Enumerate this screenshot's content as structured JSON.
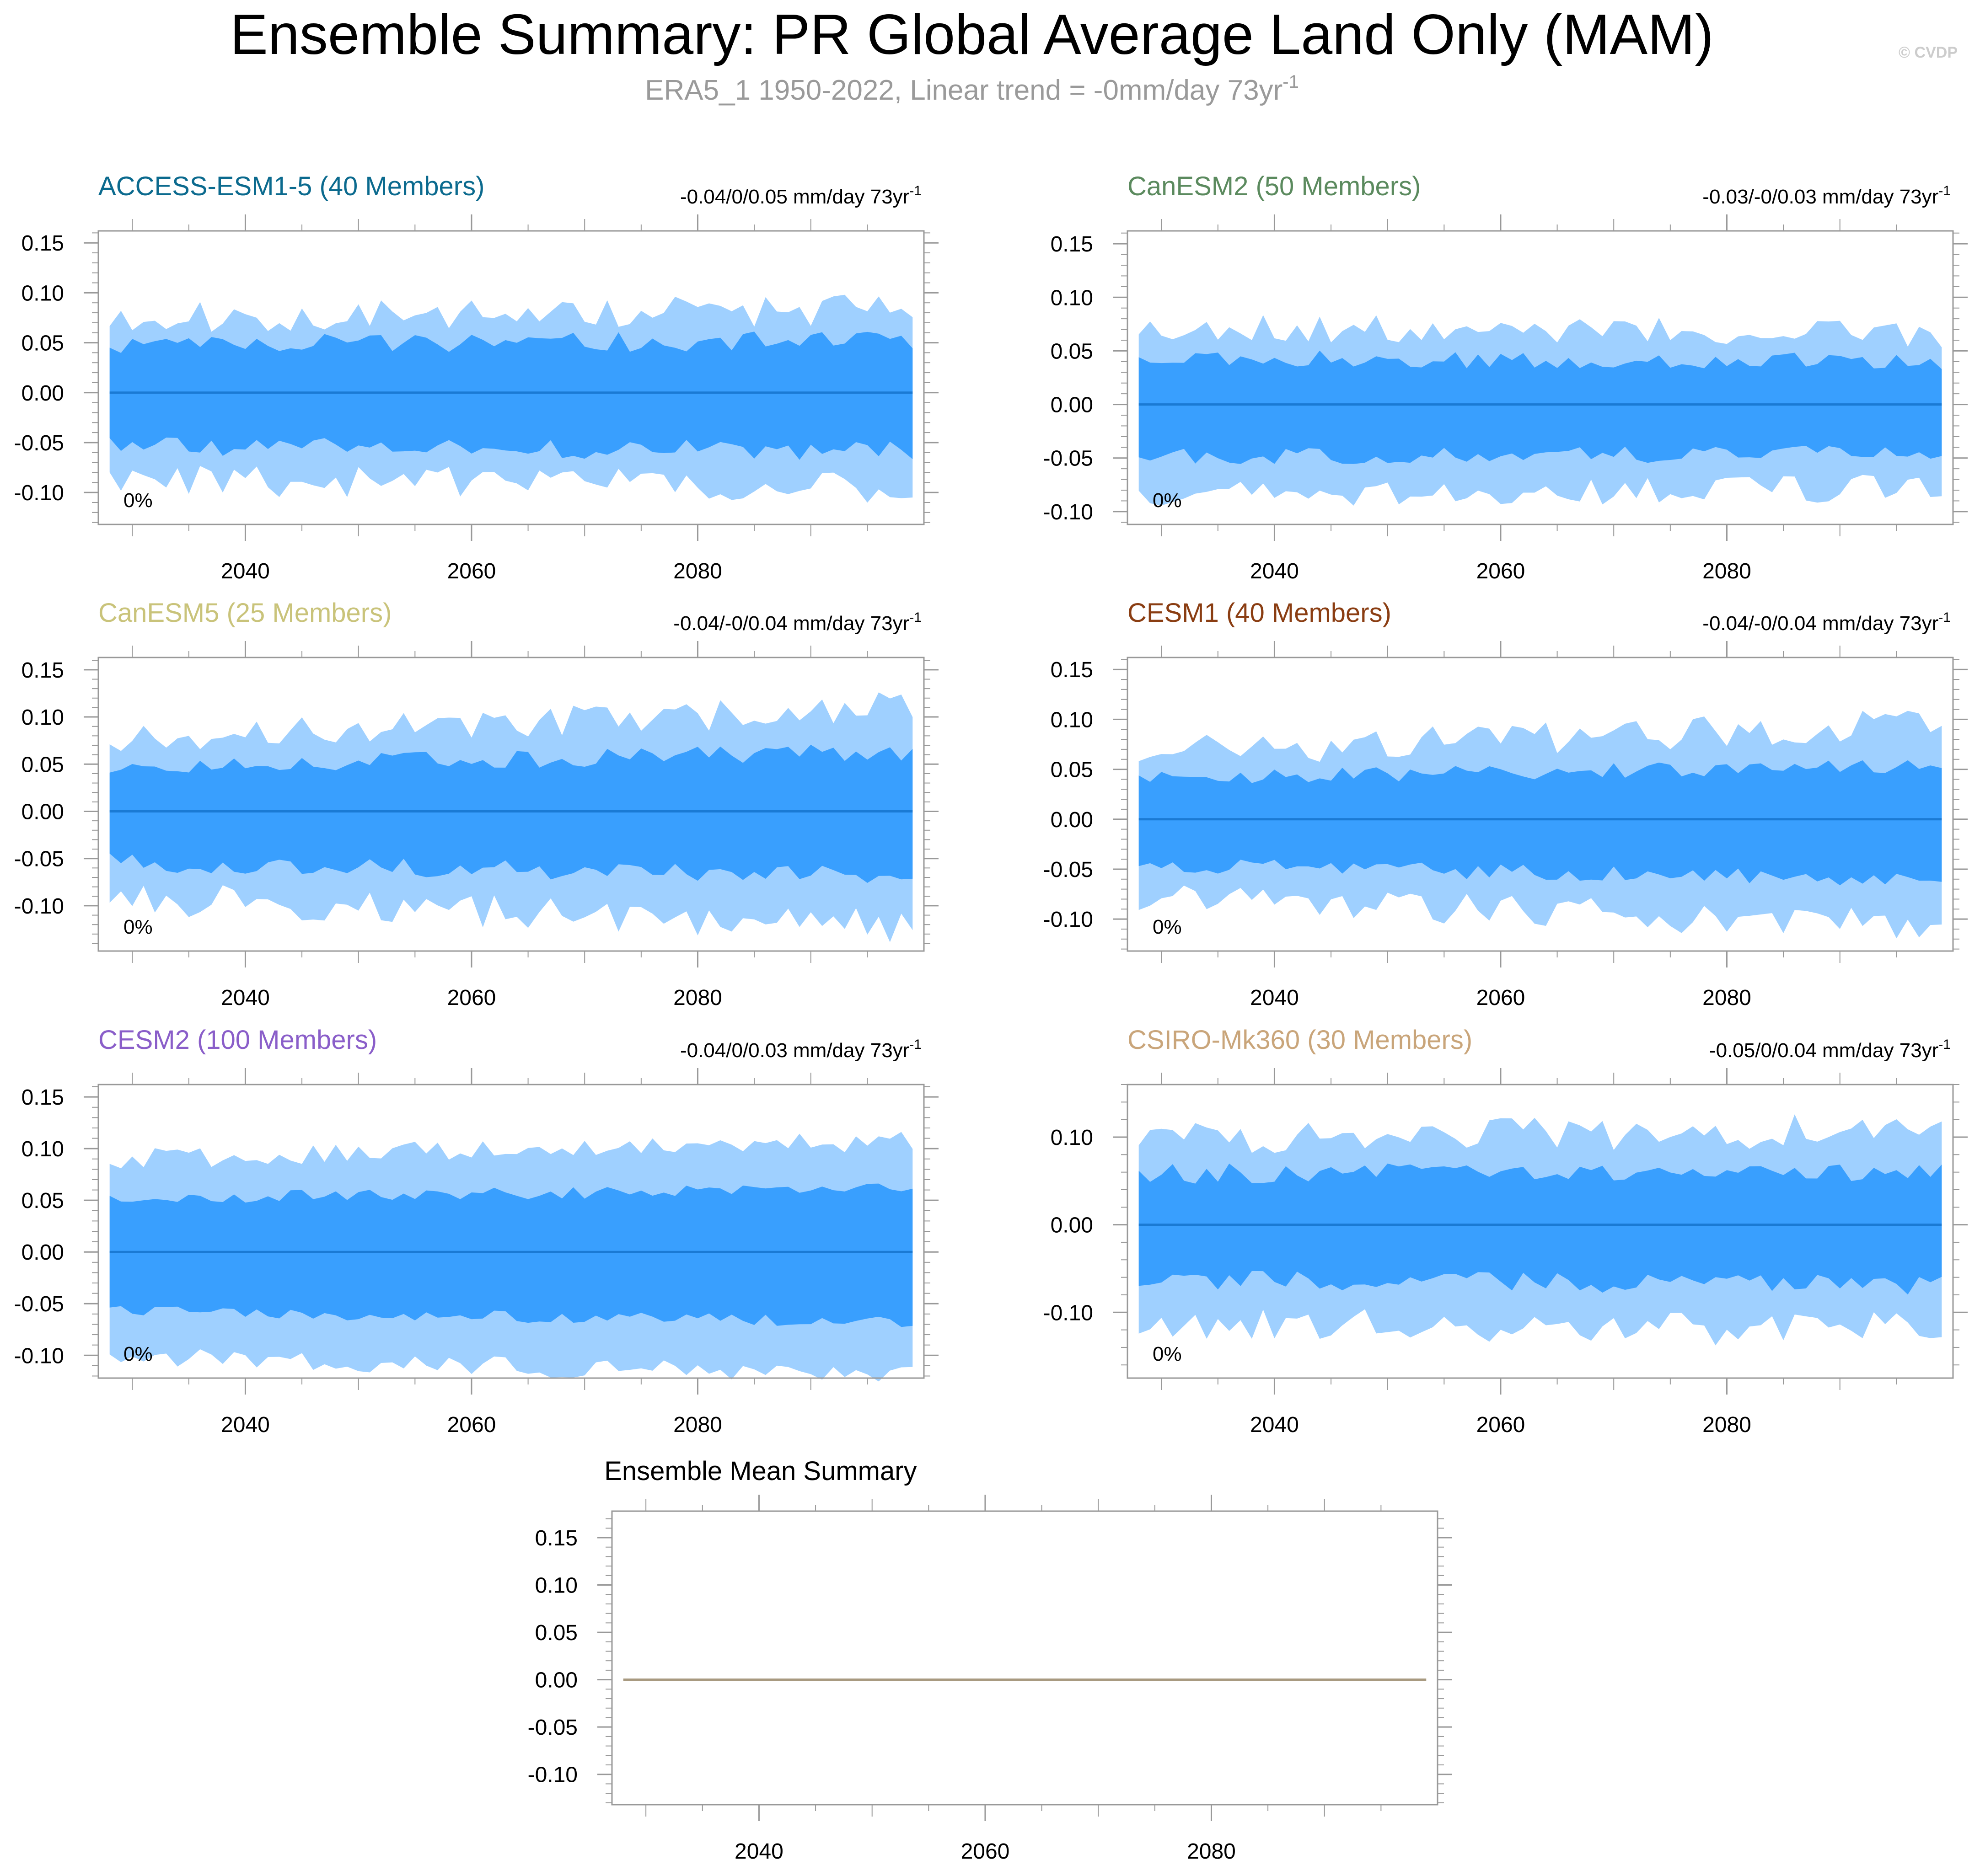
{
  "title": "Ensemble Summary: PR Global Average Land Only (MAM)",
  "subtitle_main": "ERA5_1 1950-2022, Linear trend = -0mm/day 73yr",
  "subtitle_sup": "-1",
  "copyright": "© CVDP",
  "colors": {
    "outer_band": "#9fd0ff",
    "inner_band": "#399ffe",
    "median_line": "#1a7ad4",
    "mean_line": "#a89a80",
    "axis": "#999999",
    "tick_label": "#000000",
    "subtitle": "#9a9a9a",
    "copyright": "#cccccc"
  },
  "chart_data": [
    {
      "type": "area",
      "name": "ACCESS-ESM1-5 (40 Members)",
      "title_color": "#0b6a8e",
      "trend_text": "-0.04/0/0.05 mm/day 73yr",
      "trend_sup": "-1",
      "pct_label": "0%",
      "xlim": [
        2027,
        2100
      ],
      "ylim": [
        -0.132,
        0.162
      ],
      "yticks": [
        -0.1,
        -0.05,
        0.0,
        0.05,
        0.1,
        0.15
      ],
      "ytick_labels": [
        "-0.10",
        "-0.05",
        "0.00",
        "0.05",
        "0.10",
        "0.15"
      ],
      "xticks": [
        2040,
        2060,
        2080
      ],
      "xtick_labels": [
        "2040",
        "2060",
        "2080"
      ],
      "seed": 11,
      "outer_amp": 0.075,
      "outer_var": 0.016,
      "inner_amp": 0.048,
      "inner_var": 0.01,
      "drift": 0.008
    },
    {
      "type": "area",
      "name": "CanESM2 (50 Members)",
      "title_color": "#5b8a5e",
      "trend_text": "-0.03/-0/0.03 mm/day 73yr",
      "trend_sup": "-1",
      "pct_label": "0%",
      "xlim": [
        2027,
        2100
      ],
      "ylim": [
        -0.112,
        0.162
      ],
      "yticks": [
        -0.1,
        -0.05,
        0.0,
        0.05,
        0.1,
        0.15
      ],
      "ytick_labels": [
        "-0.10",
        "-0.05",
        "0.00",
        "0.05",
        "0.10",
        "0.15"
      ],
      "xticks": [
        2040,
        2060,
        2080
      ],
      "xtick_labels": [
        "2040",
        "2060",
        "2080"
      ],
      "seed": 23,
      "outer_amp": 0.072,
      "outer_var": 0.013,
      "inner_amp": 0.043,
      "inner_var": 0.008,
      "drift": -0.006
    },
    {
      "type": "area",
      "name": "CanESM5 (25 Members)",
      "title_color": "#c9c37a",
      "trend_text": "-0.04/-0/0.04 mm/day 73yr",
      "trend_sup": "-1",
      "pct_label": "0%",
      "xlim": [
        2027,
        2100
      ],
      "ylim": [
        -0.148,
        0.163
      ],
      "yticks": [
        -0.1,
        -0.05,
        0.0,
        0.05,
        0.1,
        0.15
      ],
      "ytick_labels": [
        "-0.10",
        "-0.05",
        "0.00",
        "0.05",
        "0.10",
        "0.15"
      ],
      "xticks": [
        2040,
        2060,
        2080
      ],
      "xtick_labels": [
        "2040",
        "2060",
        "2080"
      ],
      "seed": 37,
      "outer_amp": 0.08,
      "outer_var": 0.018,
      "inner_amp": 0.048,
      "inner_var": 0.01,
      "drift": 0.03
    },
    {
      "type": "area",
      "name": "CESM1 (40 Members)",
      "title_color": "#8a3d12",
      "trend_text": "-0.04/-0/0.04 mm/day 73yr",
      "trend_sup": "-1",
      "pct_label": "0%",
      "xlim": [
        2027,
        2100
      ],
      "ylim": [
        -0.132,
        0.162
      ],
      "yticks": [
        -0.1,
        -0.05,
        0.0,
        0.05,
        0.1,
        0.15
      ],
      "ytick_labels": [
        "-0.10",
        "-0.05",
        "0.00",
        "0.05",
        "0.10",
        "0.15"
      ],
      "xticks": [
        2040,
        2060,
        2080
      ],
      "xtick_labels": [
        "2040",
        "2060",
        "2080"
      ],
      "seed": 51,
      "outer_amp": 0.066,
      "outer_var": 0.016,
      "inner_amp": 0.04,
      "inner_var": 0.008,
      "drift": 0.03
    },
    {
      "type": "area",
      "name": "CESM2 (100 Members)",
      "title_color": "#8a5ec9",
      "trend_text": "-0.04/0/0.03 mm/day 73yr",
      "trend_sup": "-1",
      "pct_label": "0%",
      "xlim": [
        2027,
        2100
      ],
      "ylim": [
        -0.122,
        0.162
      ],
      "yticks": [
        -0.1,
        -0.05,
        0.0,
        0.05,
        0.1,
        0.15
      ],
      "ytick_labels": [
        "-0.10",
        "-0.05",
        "0.00",
        "0.05",
        "0.10",
        "0.15"
      ],
      "xticks": [
        2040,
        2060,
        2080
      ],
      "xtick_labels": [
        "2040",
        "2060",
        "2080"
      ],
      "seed": 67,
      "outer_amp": 0.09,
      "outer_var": 0.01,
      "inner_amp": 0.052,
      "inner_var": 0.006,
      "drift": 0.018
    },
    {
      "type": "area",
      "name": "CSIRO-Mk360 (30 Members)",
      "title_color": "#c9a57a",
      "trend_text": "-0.05/0/0.04 mm/day 73yr",
      "trend_sup": "-1",
      "pct_label": "0%",
      "xlim": [
        2027,
        2100
      ],
      "ylim": [
        -0.175,
        0.16
      ],
      "yticks": [
        -0.1,
        0.0,
        0.1
      ],
      "ytick_labels": [
        "-0.10",
        "0.00",
        "0.10"
      ],
      "xticks": [
        2040,
        2060,
        2080
      ],
      "xtick_labels": [
        "2040",
        "2060",
        "2080"
      ],
      "seed": 83,
      "outer_amp": 0.1,
      "outer_var": 0.02,
      "inner_amp": 0.058,
      "inner_var": 0.012,
      "drift": 0.008
    },
    {
      "type": "line",
      "name": "Ensemble Mean Summary",
      "title_color": "#000000",
      "xlim": [
        2027,
        2100
      ],
      "ylim": [
        -0.132,
        0.178
      ],
      "yticks": [
        -0.1,
        -0.05,
        0.0,
        0.05,
        0.1,
        0.15
      ],
      "ytick_labels": [
        "-0.10",
        "-0.05",
        "0.00",
        "0.05",
        "0.10",
        "0.15"
      ],
      "xticks": [
        2040,
        2060,
        2080
      ],
      "xtick_labels": [
        "2040",
        "2060",
        "2080"
      ],
      "x": [
        2028,
        2099
      ],
      "y": [
        0.0,
        0.0
      ]
    }
  ]
}
